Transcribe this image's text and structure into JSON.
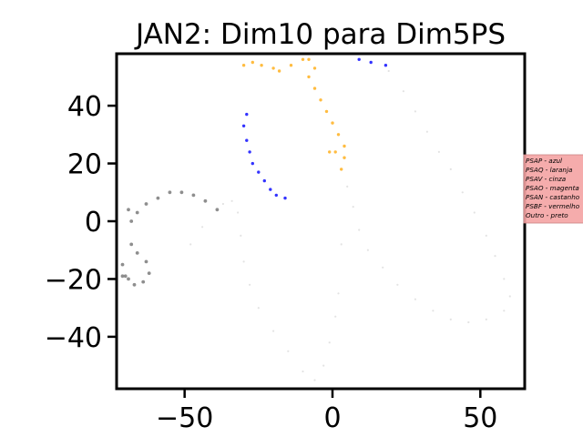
{
  "chart_data": {
    "type": "scatter",
    "title": "JAN2: Dim10 para Dim5PS",
    "xlabel": "",
    "ylabel": "",
    "xlim": [
      -73,
      65
    ],
    "ylim": [
      -58,
      58
    ],
    "x_ticks": [
      -50,
      0,
      50
    ],
    "x_tick_labels": [
      "−50",
      "0",
      "50"
    ],
    "y_ticks": [
      -40,
      -20,
      0,
      20,
      40
    ],
    "y_tick_labels": [
      "−40",
      "−20",
      "0",
      "20",
      "40"
    ],
    "grid": false,
    "legend": {
      "placement": "outside-right",
      "background": "#f4a3a3",
      "entries": [
        "PSAP - azul",
        "PSAQ - laranja",
        "PSAV - cinza",
        "PSAO - magenta",
        "PSAN - castanho",
        "PSBF - vermelho",
        "Outro - preto"
      ]
    },
    "series": [
      {
        "color": "#dcdcdc",
        "size": 1.1,
        "opacity": 0.8,
        "values": [
          [
            19,
            52
          ],
          [
            24,
            45
          ],
          [
            28,
            38
          ],
          [
            32,
            31
          ],
          [
            36,
            24
          ],
          [
            40,
            18
          ],
          [
            44,
            10
          ],
          [
            48,
            3
          ],
          [
            52,
            -5
          ],
          [
            55,
            -12
          ],
          [
            58,
            -20
          ],
          [
            60,
            -26
          ],
          [
            58,
            -31
          ],
          [
            52,
            -34
          ],
          [
            46,
            -35
          ],
          [
            40,
            -34
          ],
          [
            34,
            -31
          ],
          [
            28,
            -27
          ],
          [
            22,
            -22
          ],
          [
            17,
            -16
          ],
          [
            12,
            -10
          ],
          [
            9,
            -3
          ],
          [
            7,
            5
          ],
          [
            5,
            12
          ],
          [
            3,
            -8
          ],
          [
            2,
            -25
          ],
          [
            1,
            -33
          ],
          [
            -1,
            -42
          ],
          [
            -3,
            -50
          ],
          [
            -6,
            -55
          ],
          [
            -10,
            -52
          ],
          [
            -15,
            -45
          ],
          [
            -20,
            -38
          ],
          [
            -25,
            -30
          ],
          [
            -28,
            -22
          ],
          [
            -30,
            -14
          ],
          [
            -31,
            -5
          ],
          [
            -32,
            3
          ],
          [
            -34,
            7
          ],
          [
            -37,
            6
          ],
          [
            -44,
            -2
          ],
          [
            -48,
            -8
          ]
        ]
      },
      {
        "color": "#ffa500",
        "size": 1.7,
        "opacity": 0.75,
        "values": [
          [
            -30,
            54
          ],
          [
            -27,
            55
          ],
          [
            -24,
            54
          ],
          [
            -20,
            53
          ],
          [
            -18,
            52
          ],
          [
            -14,
            54
          ],
          [
            -10,
            56
          ],
          [
            -8,
            56
          ],
          [
            -6,
            53
          ],
          [
            -8,
            50
          ],
          [
            -6,
            46
          ],
          [
            -4,
            42
          ],
          [
            -2,
            38
          ],
          [
            0,
            34
          ],
          [
            2,
            30
          ],
          [
            4,
            26
          ],
          [
            4,
            22
          ],
          [
            3,
            18
          ],
          [
            1,
            24
          ],
          [
            -1,
            24
          ]
        ]
      },
      {
        "color": "#0000ff",
        "size": 1.7,
        "opacity": 0.8,
        "values": [
          [
            -29,
            37
          ],
          [
            -30,
            33
          ],
          [
            -29,
            28
          ],
          [
            -28,
            24
          ],
          [
            -27,
            20
          ],
          [
            -25,
            17
          ],
          [
            -23,
            14
          ],
          [
            -21,
            11
          ],
          [
            -19,
            9
          ],
          [
            -16,
            8
          ],
          [
            9,
            56
          ],
          [
            13,
            55
          ],
          [
            18,
            54
          ]
        ]
      },
      {
        "color": "#7a7a7a",
        "size": 1.9,
        "opacity": 0.85,
        "values": [
          [
            -39,
            4
          ],
          [
            -43,
            7
          ],
          [
            -47,
            9
          ],
          [
            -51,
            10
          ],
          [
            -55,
            10
          ],
          [
            -59,
            8
          ],
          [
            -63,
            6
          ],
          [
            -66,
            3
          ],
          [
            -68,
            0
          ],
          [
            -69,
            4
          ],
          [
            -68,
            -8
          ],
          [
            -66,
            -11
          ],
          [
            -63,
            -14
          ],
          [
            -62,
            -18
          ],
          [
            -64,
            -21
          ],
          [
            -67,
            -22
          ],
          [
            -70,
            -19
          ],
          [
            -71,
            -15
          ],
          [
            -71,
            -19
          ],
          [
            -69,
            -20
          ]
        ]
      }
    ]
  }
}
